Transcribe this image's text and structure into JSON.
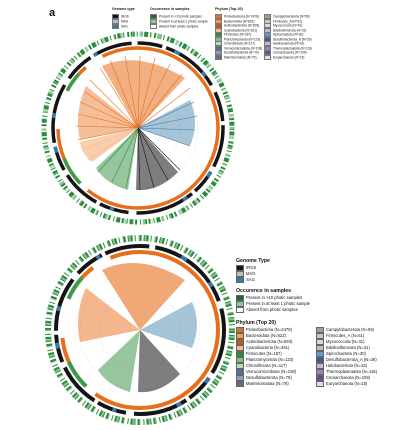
{
  "panel_label": "a",
  "legend": {
    "genome_type_title": "Genome type",
    "genome_type_title_bottom": "Genome Type",
    "genome_types": [
      {
        "label": "IRGS",
        "color": "#141414"
      },
      {
        "label": "MAG",
        "color": "#bdbdbd"
      },
      {
        "label": "SAG",
        "color": "#3b7aa8"
      }
    ],
    "occurrence_title": "Occurrence in samples",
    "occurrence_title_bottom": "Occurence in samples",
    "occurrence": [
      {
        "label": "Present in >10 photic samples",
        "color": "#1e6b2c"
      },
      {
        "label": "Present in at least 1 photic sample",
        "color": "#8cc79a"
      },
      {
        "label": "Absent from photic samples",
        "color": "#ffffff"
      }
    ],
    "phylum_title": "Phylum (Top 20)",
    "phyla": [
      {
        "label": "Proteobacteria (N=2478)",
        "color": "#e86e1c"
      },
      {
        "label": "Bacteroidota (N=822)",
        "color": "#f39a52"
      },
      {
        "label": "Actinobacteriota (N=593)",
        "color": "#c45a16"
      },
      {
        "label": "Cyanobacteria (N=261)",
        "color": "#f5b98b"
      },
      {
        "label": "Firmicutes (N=187)",
        "color": "#2e8b3e"
      },
      {
        "label": "Planctomycetota (N=123)",
        "color": "#7cc47f"
      },
      {
        "label": "Chloroflexota (N=117)",
        "color": "#b6dfb0"
      },
      {
        "label": "Verrucomicrobiota (N=108)",
        "color": "#556fa6"
      },
      {
        "label": "Desulfobacterota (N=79)",
        "color": "#8c9dc8"
      },
      {
        "label": "Marinisomatota (N=76)",
        "color": "#6b6b6b"
      },
      {
        "label": "Campylobacterota (N=59)",
        "color": "#9e9e9e"
      },
      {
        "label": "Firmicutes_A (N=51)",
        "color": "#c7c7c7"
      },
      {
        "label": "Myxococcota (N=41)",
        "color": "#d9d9d9"
      },
      {
        "label": "Bdellovibrionota (N=31)",
        "color": "#a7c2dd"
      },
      {
        "label": "Spirochaetota (N=30)",
        "color": "#5f9ccf"
      },
      {
        "label": "Desulfobacterota_A (N=26)",
        "color": "#3a5f8f"
      },
      {
        "label": "Halobacteriota (N=15)",
        "color": "#c9b6d9"
      },
      {
        "label": "Thermoplasmatota (N=116)",
        "color": "#9d7fc0"
      },
      {
        "label": "Crenarchaeota (N=109)",
        "color": "#6a4c93"
      },
      {
        "label": "Euryarchaeota (N=15)",
        "color": "#e4d9ee"
      }
    ]
  }
}
